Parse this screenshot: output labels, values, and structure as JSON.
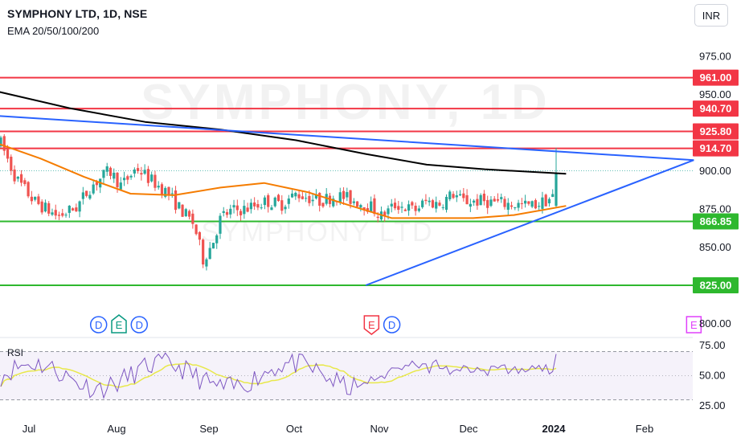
{
  "header": {
    "title": "SYMPHONY LTD, 1D, NSE",
    "indicator": "EMA 20/50/100/200",
    "currency": "INR"
  },
  "watermark": {
    "main": "SYMPHONY, 1D",
    "sub": "SYMPHONY LTD"
  },
  "colors": {
    "candle_up": "#26a69a",
    "candle_down": "#ef5350",
    "ema_orange": "#f57c00",
    "ema_black": "#000000",
    "trendline_blue": "#2962ff",
    "resistance_red": "#f23645",
    "support_green": "#2eb82e",
    "rsi_line": "#7e57c2",
    "rsi_ma": "#e8e84a"
  },
  "chart_data": {
    "type": "candlestick",
    "y_axis": {
      "ticks": [
        "975.00",
        "950.00",
        "900.00",
        "875.00",
        "850.00",
        "800.00"
      ],
      "range": [
        800,
        980
      ]
    },
    "x_axis": {
      "ticks": [
        "Jul",
        "Aug",
        "Sep",
        "Oct",
        "Nov",
        "Dec",
        "2024",
        "Feb"
      ]
    },
    "horizontal_levels": [
      {
        "value": 961.0,
        "label": "961.00",
        "kind": "resistance"
      },
      {
        "value": 940.7,
        "label": "940.70",
        "kind": "resistance"
      },
      {
        "value": 925.8,
        "label": "925.80",
        "kind": "resistance"
      },
      {
        "value": 914.7,
        "label": "914.70",
        "kind": "resistance"
      },
      {
        "value": 866.85,
        "label": "866.85",
        "kind": "support"
      },
      {
        "value": 825.0,
        "label": "825.00",
        "kind": "support"
      }
    ],
    "trendlines": [
      {
        "from": [
          "2023-06-20",
          936
        ],
        "to": [
          "2024-02-15",
          907
        ]
      },
      {
        "from": [
          "2023-10-25",
          825
        ],
        "to": [
          "2024-02-15",
          907
        ]
      }
    ],
    "markers": [
      {
        "date": "2023-07-25",
        "label": "D",
        "kind": "dividend"
      },
      {
        "date": "2023-08-01",
        "label": "E",
        "kind": "earnings"
      },
      {
        "date": "2023-08-08",
        "label": "D",
        "kind": "dividend"
      },
      {
        "date": "2023-10-27",
        "label": "E",
        "kind": "earnings-down"
      },
      {
        "date": "2023-11-03",
        "label": "D",
        "kind": "dividend"
      },
      {
        "date": "2024-02-15",
        "label": "E",
        "kind": "earnings-future"
      }
    ],
    "ema_fast": [
      [
        "2023-06-20",
        918
      ],
      [
        "2023-07-05",
        908
      ],
      [
        "2023-07-20",
        896
      ],
      [
        "2023-08-05",
        885
      ],
      [
        "2023-08-20",
        884
      ],
      [
        "2023-09-05",
        889
      ],
      [
        "2023-09-20",
        892
      ],
      [
        "2023-10-05",
        886
      ],
      [
        "2023-10-20",
        877
      ],
      [
        "2023-11-03",
        869
      ],
      [
        "2023-11-17",
        869
      ],
      [
        "2023-12-01",
        869
      ],
      [
        "2023-12-15",
        871
      ],
      [
        "2024-01-02",
        877
      ]
    ],
    "ema_slow": [
      [
        "2023-06-20",
        952
      ],
      [
        "2023-07-15",
        941
      ],
      [
        "2023-08-10",
        932
      ],
      [
        "2023-09-05",
        927
      ],
      [
        "2023-10-01",
        920
      ],
      [
        "2023-10-25",
        911
      ],
      [
        "2023-11-15",
        904
      ],
      [
        "2023-12-05",
        901
      ],
      [
        "2024-01-02",
        898
      ]
    ],
    "rsi": {
      "label": "RSI",
      "ticks": [
        "75.00",
        "50.00",
        "25.00"
      ],
      "bands": [
        30,
        70
      ],
      "range": [
        20,
        80
      ]
    }
  }
}
